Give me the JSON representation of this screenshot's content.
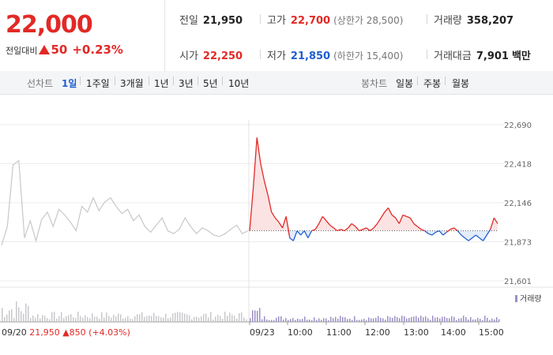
{
  "price": {
    "current": "22,000",
    "change_label": "전일대비",
    "change": "50",
    "change_pct": "+0.23%"
  },
  "stats": {
    "prev_close": {
      "label": "전일",
      "value": "21,950"
    },
    "high": {
      "label": "고가",
      "value": "22,700",
      "note": "(상한가 28,500)"
    },
    "volume": {
      "label": "거래량",
      "value": "358,207"
    },
    "open": {
      "label": "시가",
      "value": "22,250"
    },
    "low": {
      "label": "저가",
      "value": "21,850",
      "note": "(하한가 15,400)"
    },
    "trade_value": {
      "label": "거래대금",
      "value": "7,901",
      "unit": "백만"
    }
  },
  "line_tabs": {
    "title": "선차트",
    "items": [
      "1일",
      "1주일",
      "3개월",
      "1년",
      "3년",
      "5년",
      "10년"
    ],
    "selected": 0
  },
  "candle_tabs": {
    "title": "봉차트",
    "items": [
      "일봉",
      "주봉",
      "월봉"
    ]
  },
  "colors": {
    "up": "#e22926",
    "down": "#1f5ecf",
    "prev_day_line": "#c8c8cc",
    "volume": "#9d8fc4"
  },
  "chart_data": {
    "type": "line",
    "y_ticks": [
      "22,690",
      "22,418",
      "22,146",
      "21,873",
      "21,601"
    ],
    "ylim": [
      21601,
      22690
    ],
    "baseline": 21950,
    "x_ticks": [
      "09/23",
      "10:00",
      "11:00",
      "12:00",
      "13:00",
      "14:00",
      "15:00"
    ],
    "prev_day": {
      "date_label": "09/20",
      "close": "21,950",
      "change": "850",
      "change_pct": "(+4.03%)",
      "values": [
        21850,
        21980,
        22410,
        22440,
        21900,
        22020,
        21880,
        22030,
        22080,
        21980,
        22100,
        22060,
        22010,
        21950,
        22120,
        22080,
        22180,
        22090,
        22150,
        22180,
        22120,
        22070,
        22100,
        22020,
        22060,
        21980,
        21940,
        21990,
        22040,
        21950,
        21930,
        21960,
        22040,
        21980,
        21930,
        21970,
        21950,
        21920,
        21910,
        21930,
        21960,
        21990,
        21930,
        21950
      ]
    },
    "today": {
      "values": [
        21950,
        22250,
        22600,
        22420,
        22300,
        22200,
        22080,
        22040,
        22010,
        21970,
        22050,
        21900,
        21880,
        21950,
        21920,
        21950,
        21900,
        21950,
        21960,
        22000,
        22050,
        22020,
        21990,
        21970,
        21950,
        21960,
        21950,
        21970,
        22000,
        21980,
        21950,
        21960,
        21970,
        21950,
        21970,
        22000,
        22040,
        22080,
        22110,
        22060,
        22040,
        22000,
        22060,
        22050,
        22040,
        22000,
        21980,
        21960,
        21950,
        21930,
        21920,
        21940,
        21950,
        21920,
        21940,
        21960,
        21970,
        21950,
        21920,
        21900,
        21880,
        21900,
        21920,
        21900,
        21880,
        21920,
        21960,
        22040,
        22000
      ]
    },
    "volume_label": "거래량"
  }
}
